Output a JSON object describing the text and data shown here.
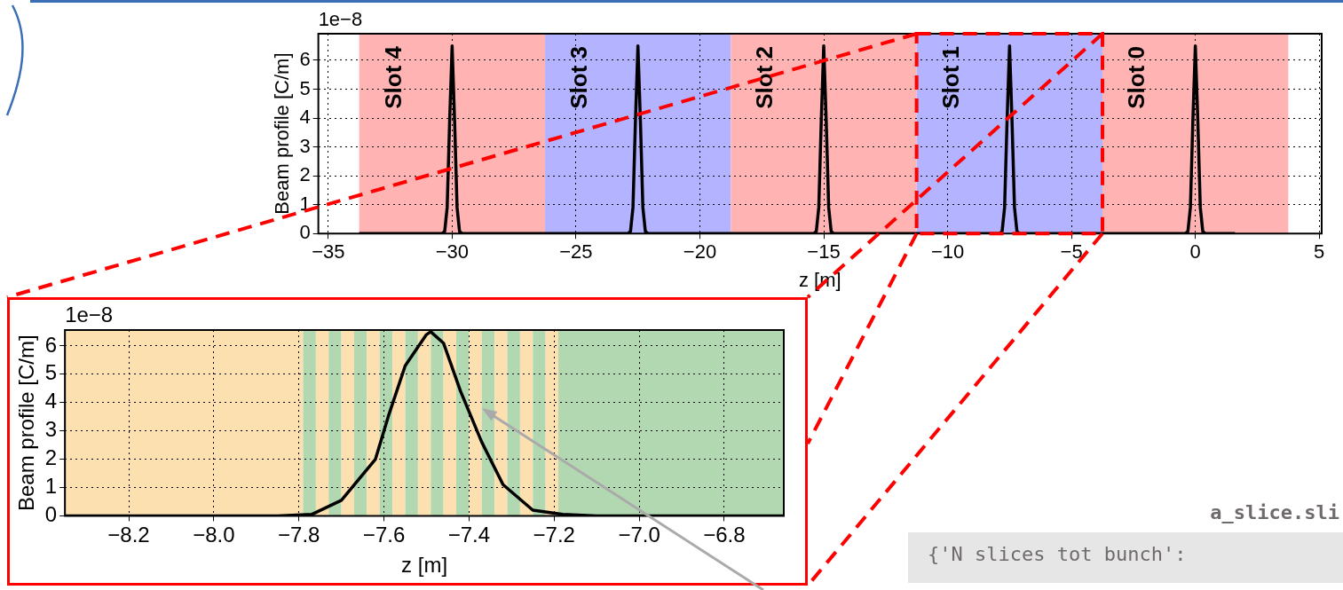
{
  "chart_data": [
    {
      "type": "line",
      "xlabel": "z [m]",
      "ylabel": "Beam profile [C/m]",
      "annotations": [
        "1e−8"
      ],
      "grid": true,
      "xlim": [
        -35.4,
        5.1
      ],
      "xticks": [
        {
          "value": -35,
          "label": "−35"
        },
        {
          "value": -30,
          "label": "−30"
        },
        {
          "value": -25,
          "label": "−25"
        },
        {
          "value": -20,
          "label": "−20"
        },
        {
          "value": -15,
          "label": "−15"
        },
        {
          "value": -10,
          "label": "−10"
        },
        {
          "value": -5,
          "label": "−5"
        },
        0,
        5
      ],
      "ylim": [
        0,
        6.92
      ],
      "yticks": [
        0,
        1,
        2,
        3,
        4,
        5,
        6
      ],
      "bands": [
        {
          "axis": "x",
          "from": -33.75,
          "to": -26.25,
          "label": "Slot 4",
          "color": "#ffb3b3"
        },
        {
          "axis": "x",
          "from": -26.25,
          "to": -18.75,
          "label": "Slot 3",
          "color": "#b3b3ff"
        },
        {
          "axis": "x",
          "from": -18.75,
          "to": -11.25,
          "label": "Slot 2",
          "color": "#ffb3b3"
        },
        {
          "axis": "x",
          "from": -11.25,
          "to": -3.75,
          "label": "Slot 1",
          "color": "#b3b3ff"
        },
        {
          "axis": "x",
          "from": -3.75,
          "to": 3.75,
          "label": "Slot 0",
          "color": "#ffb3b3"
        }
      ],
      "series": [
        {
          "color": "#000000",
          "x": [
            -33.75,
            -30.4,
            -30.3,
            -30.2,
            -30.1,
            -30,
            -29.9,
            -29.8,
            -29.7,
            -29.6,
            -22.9,
            -22.8,
            -22.7,
            -22.6,
            -22.5,
            -22.4,
            -22.3,
            -22.2,
            -22.1,
            -15.4,
            -15.3,
            -15.2,
            -15.1,
            -15,
            -14.9,
            -14.8,
            -14.7,
            -14.6,
            -7.9,
            -7.8,
            -7.7,
            -7.6,
            -7.5,
            -7.4,
            -7.3,
            -7.2,
            -7.1,
            -0.4,
            -0.3,
            -0.2,
            -0.1,
            0,
            0.1,
            0.2,
            0.3,
            0.4,
            1.6
          ],
          "values": [
            0,
            0,
            0.07,
            0.9,
            3.9,
            6.5,
            3.9,
            0.9,
            0.07,
            0,
            0,
            0.07,
            0.9,
            3.9,
            6.5,
            3.9,
            0.9,
            0.07,
            0,
            0,
            0.07,
            0.9,
            3.9,
            6.5,
            3.9,
            0.9,
            0.07,
            0,
            0,
            0.07,
            0.9,
            3.9,
            6.5,
            3.9,
            0.9,
            0.07,
            0,
            0,
            0.07,
            0.9,
            3.9,
            6.5,
            3.9,
            0.9,
            0.07,
            0,
            0
          ]
        }
      ]
    },
    {
      "type": "line",
      "xlabel": "z [m]",
      "ylabel": "Beam profile [C/m]",
      "annotations": [
        "1e−8"
      ],
      "grid": true,
      "xlim": [
        -8.35,
        -6.66
      ],
      "xticks": [
        {
          "value": -8.2,
          "label": "−8.2"
        },
        {
          "value": -8.0,
          "label": "−8.0"
        },
        {
          "value": -7.8,
          "label": "−7.8"
        },
        {
          "value": -7.6,
          "label": "−7.6"
        },
        {
          "value": -7.4,
          "label": "−7.4"
        },
        {
          "value": -7.2,
          "label": "−7.2"
        },
        {
          "value": -7.0,
          "label": "−7.0"
        },
        {
          "value": -6.8,
          "label": "−6.8"
        }
      ],
      "ylim": [
        0,
        6.56
      ],
      "yticks": [
        0,
        1,
        2,
        3,
        4,
        5,
        6
      ],
      "bands": [
        {
          "axis": "x",
          "from": -8.35,
          "to": -7.79,
          "color": "#fde0b0"
        },
        {
          "axis": "x",
          "from": -7.79,
          "to": -7.76,
          "color": "#b2d8b2"
        },
        {
          "axis": "x",
          "from": -7.76,
          "to": -7.73,
          "color": "#fde0b0"
        },
        {
          "axis": "x",
          "from": -7.73,
          "to": -7.7,
          "color": "#b2d8b2"
        },
        {
          "axis": "x",
          "from": -7.7,
          "to": -7.67,
          "color": "#fde0b0"
        },
        {
          "axis": "x",
          "from": -7.67,
          "to": -7.64,
          "color": "#b2d8b2"
        },
        {
          "axis": "x",
          "from": -7.64,
          "to": -7.61,
          "color": "#fde0b0"
        },
        {
          "axis": "x",
          "from": -7.61,
          "to": -7.58,
          "color": "#b2d8b2"
        },
        {
          "axis": "x",
          "from": -7.58,
          "to": -7.55,
          "color": "#fde0b0"
        },
        {
          "axis": "x",
          "from": -7.55,
          "to": -7.52,
          "color": "#b2d8b2"
        },
        {
          "axis": "x",
          "from": -7.52,
          "to": -7.49,
          "color": "#fde0b0"
        },
        {
          "axis": "x",
          "from": -7.49,
          "to": -7.46,
          "color": "#b2d8b2"
        },
        {
          "axis": "x",
          "from": -7.46,
          "to": -7.43,
          "color": "#fde0b0"
        },
        {
          "axis": "x",
          "from": -7.43,
          "to": -7.4,
          "color": "#b2d8b2"
        },
        {
          "axis": "x",
          "from": -7.4,
          "to": -7.37,
          "color": "#fde0b0"
        },
        {
          "axis": "x",
          "from": -7.37,
          "to": -7.34,
          "color": "#b2d8b2"
        },
        {
          "axis": "x",
          "from": -7.34,
          "to": -7.31,
          "color": "#fde0b0"
        },
        {
          "axis": "x",
          "from": -7.31,
          "to": -7.28,
          "color": "#b2d8b2"
        },
        {
          "axis": "x",
          "from": -7.28,
          "to": -7.25,
          "color": "#fde0b0"
        },
        {
          "axis": "x",
          "from": -7.25,
          "to": -7.22,
          "color": "#b2d8b2"
        },
        {
          "axis": "x",
          "from": -7.22,
          "to": -7.19,
          "color": "#fde0b0"
        },
        {
          "axis": "x",
          "from": -7.19,
          "to": -6.66,
          "color": "#b2d8b2"
        }
      ],
      "series": [
        {
          "color": "#000000",
          "x": [
            -8.35,
            -7.85,
            -7.77,
            -7.7,
            -7.62,
            -7.59,
            -7.55,
            -7.5,
            -7.49,
            -7.46,
            -7.42,
            -7.37,
            -7.32,
            -7.25,
            -7.18,
            -7.1,
            -6.66
          ],
          "values": [
            0,
            0,
            0.05,
            0.55,
            2.0,
            3.5,
            5.3,
            6.4,
            6.5,
            6.1,
            4.4,
            2.6,
            1.1,
            0.2,
            0.05,
            0,
            0
          ]
        }
      ]
    },
    {
      "type": "other",
      "annotations": [
        "a_slice.sli",
        "{'N slices tot bunch': "
      ]
    }
  ]
}
